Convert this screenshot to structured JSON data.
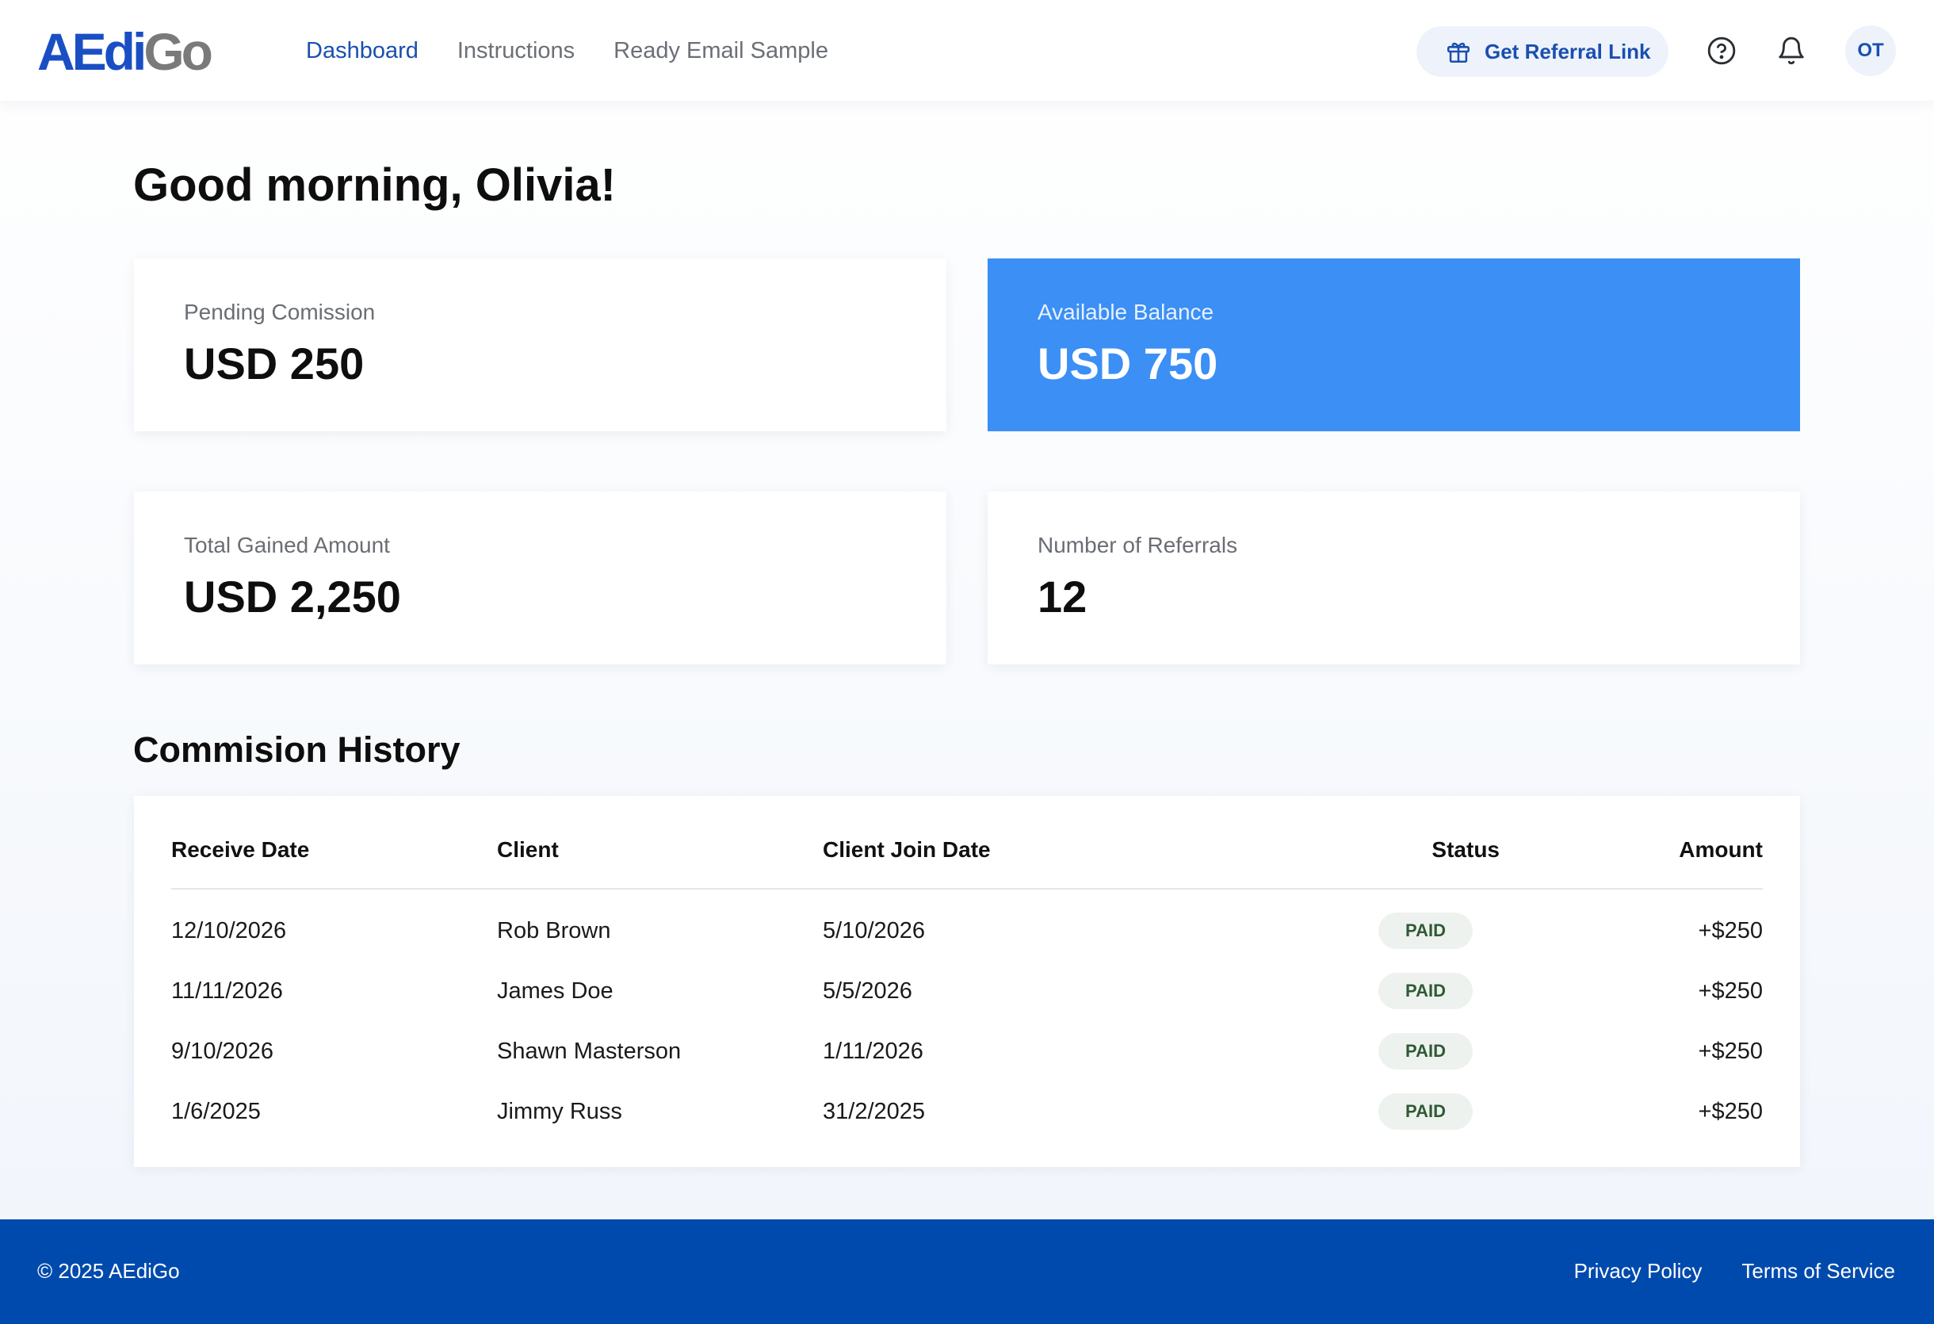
{
  "brand": {
    "logo_part1": "AEdi",
    "logo_part2": "Go",
    "primary_color": "#1a4fb0",
    "accent_color": "#3b8ff5",
    "footer_color": "#004aad"
  },
  "nav": {
    "items": [
      {
        "label": "Dashboard",
        "active": true
      },
      {
        "label": "Instructions",
        "active": false
      },
      {
        "label": "Ready Email Sample",
        "active": false
      }
    ]
  },
  "header": {
    "referral_label": "Get Referral Link",
    "referral_icon": "gift-icon",
    "help_icon": "help-circle-icon",
    "bell_icon": "bell-icon",
    "avatar_initials": "OT"
  },
  "greeting": "Good morning, Olivia!",
  "stats": [
    {
      "label": "Pending Comission",
      "value": "USD 250"
    },
    {
      "label": "Available Balance",
      "value": "USD 750"
    },
    {
      "label": "Total Gained Amount",
      "value": "USD 2,250"
    },
    {
      "label": "Number of Referrals",
      "value": "12"
    }
  ],
  "history": {
    "title": "Commision History",
    "columns": [
      "Receive Date",
      "Client",
      "Client Join Date",
      "Status",
      "Amount"
    ],
    "rows": [
      {
        "receive_date": "12/10/2026",
        "client": "Rob Brown",
        "join_date": "5/10/2026",
        "status": "PAID",
        "amount": "+$250"
      },
      {
        "receive_date": "11/11/2026",
        "client": "James Doe",
        "join_date": "5/5/2026",
        "status": "PAID",
        "amount": "+$250"
      },
      {
        "receive_date": "9/10/2026",
        "client": "Shawn Masterson",
        "join_date": "1/11/2026",
        "status": "PAID",
        "amount": "+$250"
      },
      {
        "receive_date": "1/6/2025",
        "client": "Jimmy Russ",
        "join_date": "31/2/2025",
        "status": "PAID",
        "amount": "+$250"
      }
    ]
  },
  "footer": {
    "copyright": "© 2025 AEdiGo",
    "links": [
      "Privacy Policy",
      "Terms of Service"
    ]
  }
}
